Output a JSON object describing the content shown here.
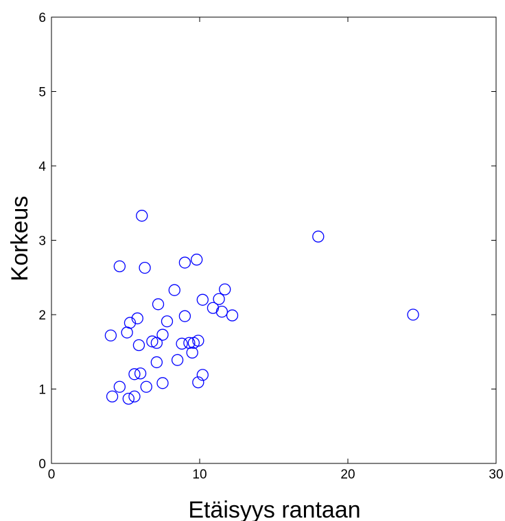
{
  "chart_data": {
    "type": "scatter",
    "xlabel": "Etäisyys rantaan",
    "ylabel": "Korkeus",
    "xlim": [
      0,
      30
    ],
    "ylim": [
      0,
      6
    ],
    "xticks": [
      "0",
      "10",
      "20",
      "30"
    ],
    "yticks": [
      "0",
      "1",
      "2",
      "3",
      "4",
      "5",
      "6"
    ],
    "grid": false,
    "marker": "open-circle",
    "marker_color": "#0000ff",
    "series": [
      {
        "x": [
          6.1,
          4.6,
          6.3,
          9.0,
          9.8,
          18.0,
          24.4,
          4.0,
          5.1,
          5.3,
          5.8,
          5.9,
          6.8,
          7.1,
          7.2,
          7.5,
          7.8,
          8.3,
          8.5,
          8.8,
          9.0,
          9.3,
          9.5,
          9.6,
          9.9,
          10.2,
          10.9,
          11.3,
          11.5,
          11.7,
          12.2,
          4.1,
          4.6,
          5.2,
          5.6,
          5.6,
          6.0,
          6.4,
          7.1,
          7.5,
          9.9,
          10.2
        ],
        "y": [
          3.33,
          2.65,
          2.63,
          2.7,
          2.74,
          3.05,
          2.0,
          1.72,
          1.76,
          1.89,
          1.95,
          1.59,
          1.64,
          1.36,
          2.14,
          1.73,
          1.91,
          2.33,
          1.39,
          1.61,
          1.98,
          1.62,
          1.49,
          1.62,
          1.65,
          2.2,
          2.09,
          2.21,
          2.04,
          2.34,
          1.99,
          0.9,
          1.03,
          0.87,
          0.9,
          1.2,
          1.21,
          1.03,
          1.62,
          1.08,
          1.09,
          1.19
        ]
      }
    ]
  }
}
